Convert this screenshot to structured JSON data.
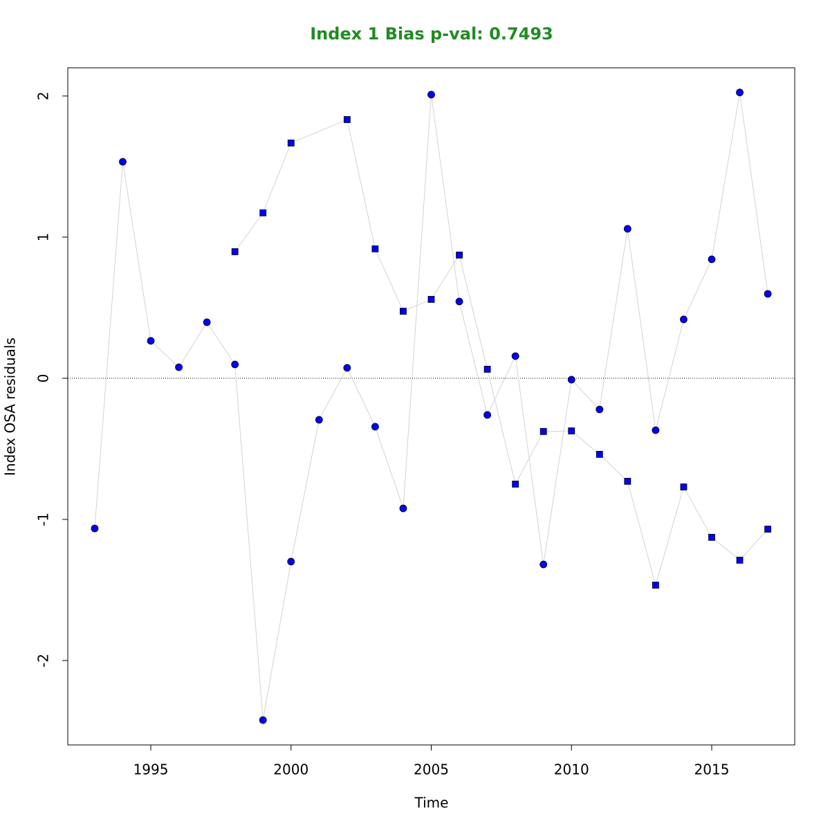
{
  "chart_data": {
    "type": "scatter",
    "title": "Index 1 Bias p-val: 0.7493",
    "title_color": "#228b22",
    "x_label": "Time",
    "y_label": "Index OSA residuals",
    "xlim": [
      1992.04,
      2017.96
    ],
    "ylim": [
      -2.598,
      2.2
    ],
    "xticks": [
      1995,
      2000,
      2005,
      2010,
      2015
    ],
    "yticks": [
      -2,
      -1,
      0,
      1,
      2
    ],
    "hline": 0,
    "line_color": "#d3d3d3",
    "series": [
      {
        "marker": "circle",
        "color": "#0000ff",
        "x": [
          1993,
          1994,
          1995,
          1996,
          1997,
          1998,
          1999,
          2000,
          2001,
          2002,
          2003,
          2004,
          2005,
          2006,
          2007,
          2008,
          2009,
          2010,
          2011,
          2012,
          2013,
          2014,
          2015,
          2016,
          2017
        ],
        "values": [
          -1.064,
          1.534,
          0.265,
          0.078,
          0.397,
          0.098,
          -2.422,
          -1.299,
          -0.294,
          0.074,
          -0.343,
          -0.922,
          2.01,
          0.544,
          -0.26,
          0.157,
          -1.319,
          -0.01,
          -0.221,
          1.059,
          -0.368,
          0.417,
          0.843,
          2.025,
          0.598
        ]
      },
      {
        "marker": "square",
        "color": "#0000ff",
        "x": [
          1998,
          1999,
          2000,
          2002,
          2003,
          2004,
          2005,
          2006,
          2007,
          2008,
          2009,
          2010,
          2011,
          2012,
          2013,
          2014,
          2015,
          2016,
          2017
        ],
        "values": [
          0.897,
          1.172,
          1.667,
          1.833,
          0.917,
          0.475,
          0.559,
          0.873,
          0.064,
          -0.75,
          -0.377,
          -0.373,
          -0.539,
          -0.73,
          -1.466,
          -0.77,
          -1.127,
          -1.289,
          -1.069
        ]
      }
    ]
  }
}
